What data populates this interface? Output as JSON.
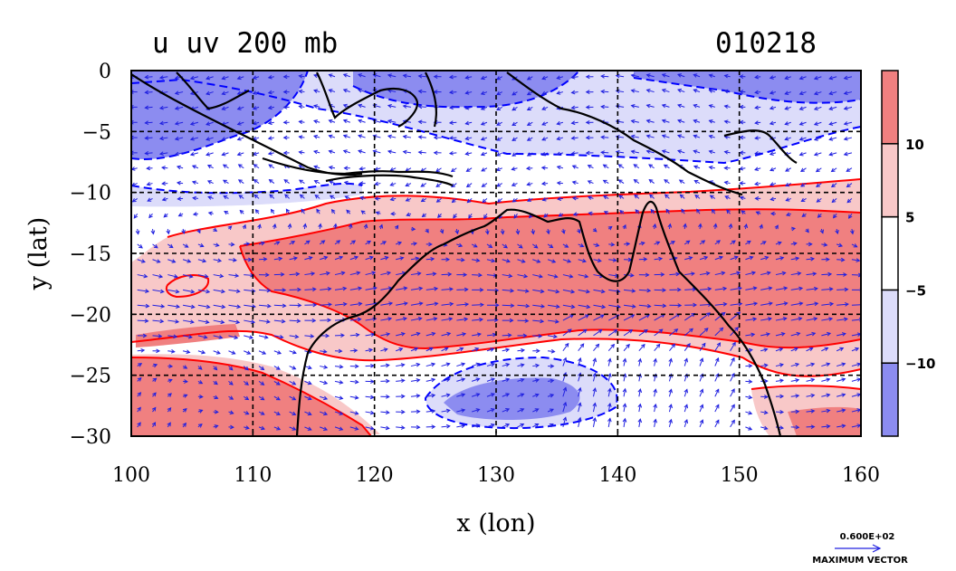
{
  "chart_data": {
    "type": "contour",
    "title": "u uv 200 mb",
    "date_label": "010218",
    "xlabel": "x (lon)",
    "ylabel": "y (lat)",
    "xlim": [
      100,
      160
    ],
    "ylim": [
      -30,
      0
    ],
    "x_ticks": [
      100,
      110,
      120,
      130,
      140,
      150,
      160
    ],
    "y_ticks": [
      0,
      -5,
      -10,
      -15,
      -20,
      -25,
      -30
    ],
    "x_tick_labels": [
      "100",
      "110",
      "120",
      "130",
      "140",
      "150",
      "160"
    ],
    "y_tick_labels": [
      "0",
      "−5",
      "−10",
      "−15",
      "−20",
      "−25",
      "−30"
    ],
    "grid": true,
    "colorbar": {
      "levels": [
        -10,
        -5,
        5,
        10
      ],
      "labels": [
        "−10",
        "−5",
        "5",
        "10"
      ],
      "colors": [
        "#8c8cf0",
        "#dcdcfa",
        "#ffffff",
        "#f8c8c8",
        "#f08080"
      ]
    },
    "vector_reference": {
      "value_label": "0.600E+02",
      "caption": "MAXIMUM VECTOR"
    },
    "colors": {
      "strong_negative": "#8c8cf0",
      "weak_negative": "#dcdcfa",
      "weak_positive": "#f8c8c8",
      "strong_positive": "#f08080",
      "positive_contour": "#ff0000",
      "negative_contour": "#0000ff",
      "vector": "#2020e0",
      "coastline": "#000000"
    }
  }
}
